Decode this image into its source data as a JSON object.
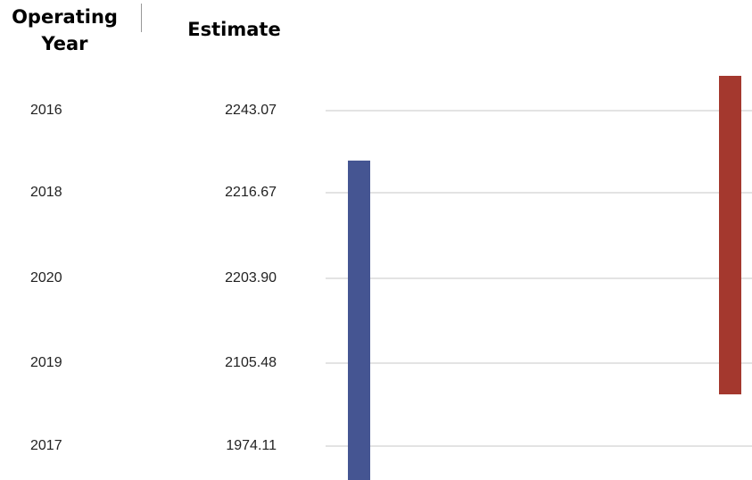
{
  "header": [
    "Operating Year",
    "Estimate"
  ],
  "rows": [
    [
      "2016",
      "2243.07"
    ],
    [
      "2018",
      "2216.67"
    ],
    [
      "2020",
      "2203.90"
    ],
    [
      "2019",
      "2105.48"
    ],
    [
      "2017",
      "1974.11"
    ]
  ]
}
